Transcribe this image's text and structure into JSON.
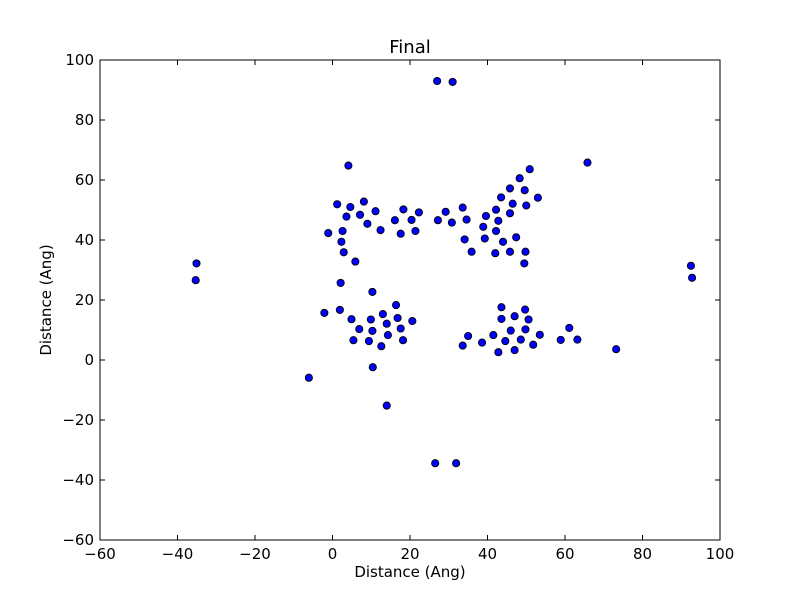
{
  "chart_data": {
    "type": "scatter",
    "title": "Final",
    "xlabel": "Distance (Ang)",
    "ylabel": "Distance (Ang)",
    "xlim": [
      -60,
      100
    ],
    "ylim": [
      -60,
      100
    ],
    "xticks": [
      -60,
      -40,
      -20,
      0,
      20,
      40,
      60,
      80,
      100
    ],
    "yticks": [
      -60,
      -40,
      -20,
      0,
      20,
      40,
      60,
      80,
      100
    ],
    "xtick_labels": [
      "−60",
      "−40",
      "−20",
      "0",
      "20",
      "40",
      "60",
      "80",
      "100"
    ],
    "ytick_labels": [
      "−60",
      "−40",
      "−20",
      "0",
      "20",
      "40",
      "60",
      "80",
      "100"
    ],
    "grid": false,
    "marker_color": "#0000ff",
    "marker_edge_color": "#000000",
    "points": [
      [
        27.0,
        93.0
      ],
      [
        31.0,
        92.7
      ],
      [
        4.1,
        64.8
      ],
      [
        65.8,
        65.8
      ],
      [
        50.9,
        63.6
      ],
      [
        48.3,
        60.6
      ],
      [
        45.8,
        57.2
      ],
      [
        49.6,
        56.6
      ],
      [
        53.0,
        54.1
      ],
      [
        43.5,
        54.2
      ],
      [
        50.0,
        51.5
      ],
      [
        46.5,
        52.1
      ],
      [
        33.6,
        50.8
      ],
      [
        42.2,
        50.1
      ],
      [
        45.8,
        48.9
      ],
      [
        39.6,
        48.0
      ],
      [
        34.6,
        46.8
      ],
      [
        42.8,
        46.4
      ],
      [
        38.9,
        44.4
      ],
      [
        42.2,
        43.0
      ],
      [
        47.4,
        40.9
      ],
      [
        39.3,
        40.5
      ],
      [
        44.0,
        39.4
      ],
      [
        34.1,
        40.2
      ],
      [
        49.8,
        36.1
      ],
      [
        45.8,
        36.1
      ],
      [
        42.0,
        35.6
      ],
      [
        35.9,
        36.1
      ],
      [
        49.5,
        32.2
      ],
      [
        1.2,
        51.9
      ],
      [
        4.6,
        51.0
      ],
      [
        8.1,
        52.8
      ],
      [
        11.1,
        49.6
      ],
      [
        7.1,
        48.4
      ],
      [
        3.6,
        47.8
      ],
      [
        9.0,
        45.4
      ],
      [
        12.4,
        43.3
      ],
      [
        2.6,
        43.0
      ],
      [
        -1.1,
        42.3
      ],
      [
        2.3,
        39.4
      ],
      [
        2.9,
        35.9
      ],
      [
        5.9,
        32.8
      ],
      [
        18.3,
        50.2
      ],
      [
        16.1,
        46.6
      ],
      [
        22.3,
        49.2
      ],
      [
        20.4,
        46.7
      ],
      [
        21.4,
        43.0
      ],
      [
        17.6,
        42.1
      ],
      [
        27.2,
        46.6
      ],
      [
        29.2,
        49.4
      ],
      [
        30.8,
        45.8
      ],
      [
        -35.1,
        32.2
      ],
      [
        -35.3,
        26.6
      ],
      [
        92.5,
        31.4
      ],
      [
        92.8,
        27.4
      ],
      [
        2.1,
        25.7
      ],
      [
        10.3,
        22.7
      ],
      [
        -2.1,
        15.7
      ],
      [
        1.9,
        16.7
      ],
      [
        4.9,
        13.6
      ],
      [
        6.9,
        10.3
      ],
      [
        5.4,
        6.6
      ],
      [
        9.4,
        6.3
      ],
      [
        9.9,
        13.5
      ],
      [
        10.3,
        9.7
      ],
      [
        13.0,
        15.3
      ],
      [
        14.0,
        12.1
      ],
      [
        14.3,
        8.3
      ],
      [
        12.6,
        4.6
      ],
      [
        16.4,
        18.3
      ],
      [
        16.8,
        14.0
      ],
      [
        17.6,
        10.5
      ],
      [
        18.2,
        6.6
      ],
      [
        20.6,
        13.0
      ],
      [
        10.4,
        -2.4
      ],
      [
        14.0,
        -15.2
      ],
      [
        -6.1,
        -5.9
      ],
      [
        43.6,
        17.6
      ],
      [
        43.6,
        13.7
      ],
      [
        46.0,
        9.8
      ],
      [
        41.5,
        8.3
      ],
      [
        44.6,
        6.3
      ],
      [
        38.6,
        5.8
      ],
      [
        35.0,
        8.0
      ],
      [
        33.6,
        4.8
      ],
      [
        42.8,
        2.6
      ],
      [
        47.0,
        3.3
      ],
      [
        47.0,
        14.6
      ],
      [
        48.6,
        6.8
      ],
      [
        49.8,
        10.2
      ],
      [
        49.7,
        16.8
      ],
      [
        50.6,
        13.5
      ],
      [
        51.8,
        5.1
      ],
      [
        53.5,
        8.4
      ],
      [
        58.9,
        6.7
      ],
      [
        61.1,
        10.7
      ],
      [
        63.2,
        6.8
      ],
      [
        73.2,
        3.6
      ],
      [
        26.5,
        -34.4
      ],
      [
        31.9,
        -34.4
      ]
    ]
  }
}
